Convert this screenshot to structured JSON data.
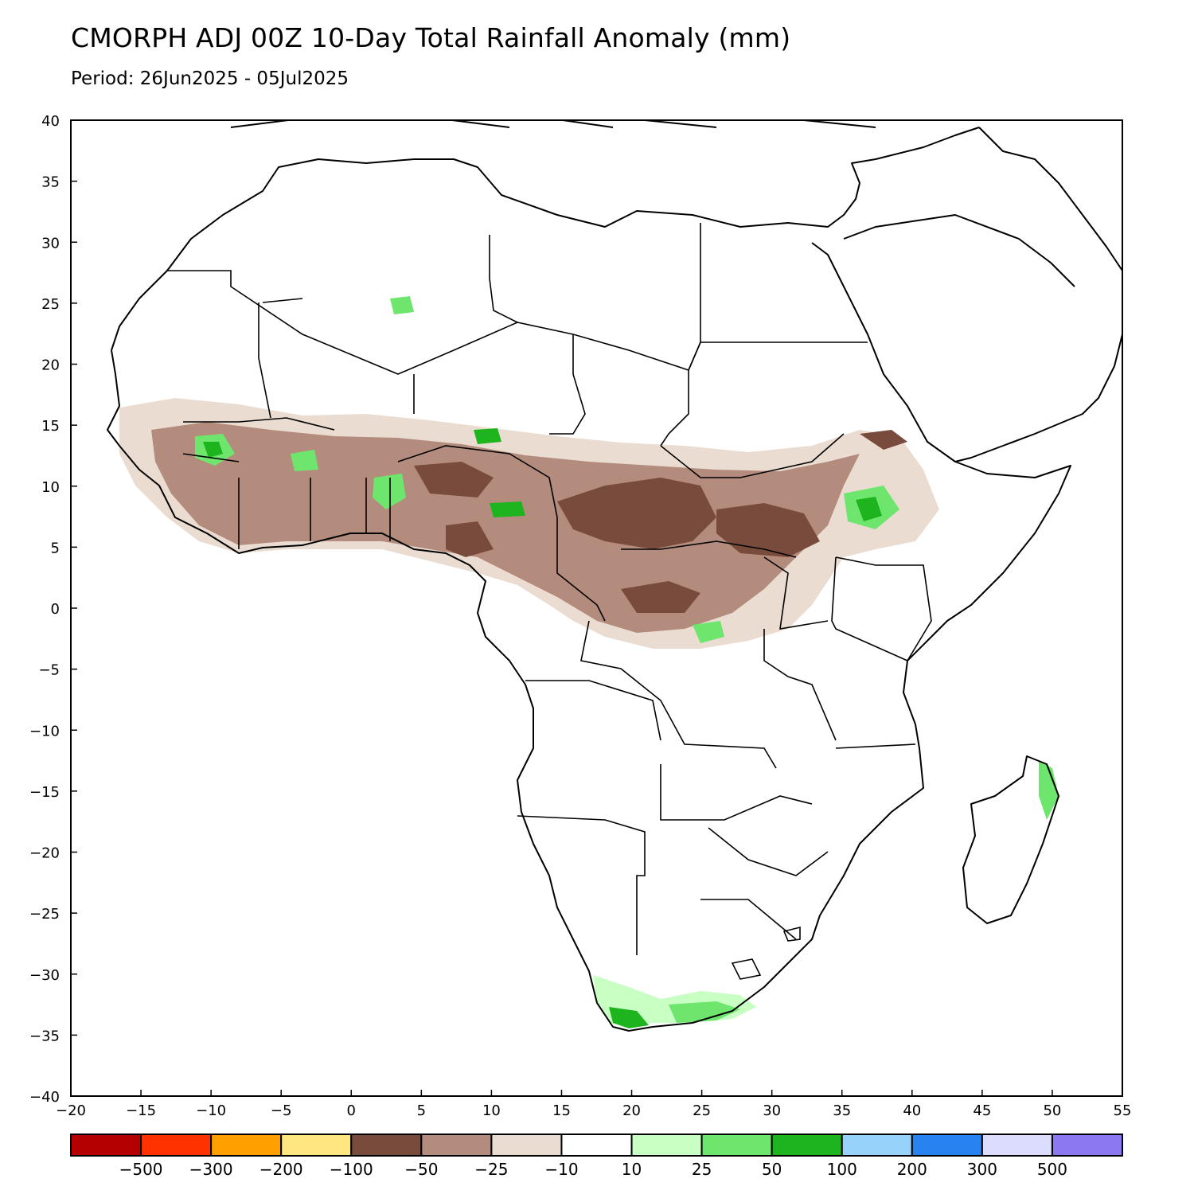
{
  "title": "CMORPH ADJ 00Z 10-Day Total Rainfall Anomaly (mm)",
  "subtitle": "Period: 26Jun2025 - 05Jul2025",
  "map": {
    "lon_ticks": [
      "-20",
      "-15",
      "-10",
      "-5",
      "0",
      "5",
      "10",
      "15",
      "20",
      "25",
      "30",
      "35",
      "40",
      "45",
      "50",
      "55"
    ],
    "lat_ticks": [
      "40",
      "35",
      "30",
      "25",
      "20",
      "15",
      "10",
      "5",
      "0",
      "-5",
      "-10",
      "-15",
      "-20",
      "-25",
      "-30",
      "-35",
      "-40"
    ],
    "lon_range": [
      -20,
      55
    ],
    "lat_range": [
      -40,
      40
    ],
    "ocean_color": "#ffffff",
    "land_border_color": "#000000"
  },
  "legend": {
    "colors": [
      "#b40000",
      "#ff3200",
      "#ffa000",
      "#ffe680",
      "#784b3c",
      "#b48c7d",
      "#ebdcd2",
      "#ffffff",
      "#c8ffc3",
      "#6ee66e",
      "#1eb41e",
      "#96d2fa",
      "#2882f0",
      "#dcdcff",
      "#8c78f0"
    ],
    "labels": [
      "-500",
      "-300",
      "-200",
      "-100",
      "-50",
      "-25",
      "-10",
      "10",
      "25",
      "50",
      "100",
      "200",
      "300",
      "500"
    ]
  }
}
